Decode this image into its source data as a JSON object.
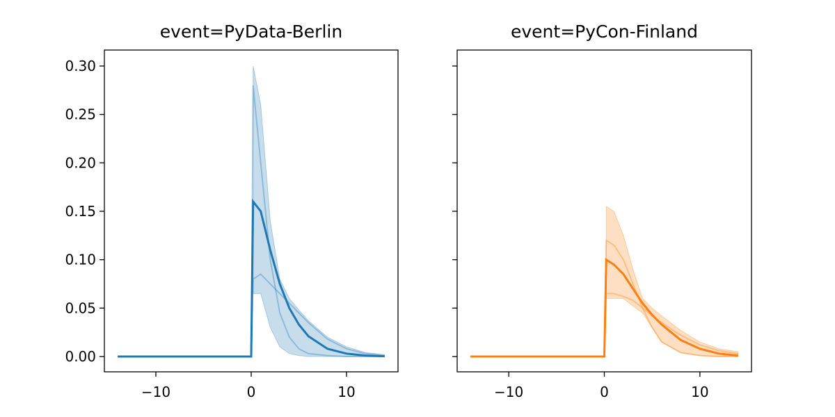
{
  "chart_data": [
    {
      "type": "line",
      "title": "event=PyData-Berlin",
      "x": [
        -14,
        -7,
        0,
        0.2,
        1,
        2,
        3,
        4,
        5,
        6,
        8,
        10,
        12,
        14
      ],
      "series": [
        {
          "color": "#1f77b4",
          "values": [
            0,
            0,
            0,
            0.16,
            0.15,
            0.11,
            0.075,
            0.05,
            0.033,
            0.021,
            0.008,
            0.003,
            0.001,
            0.0003
          ]
        }
      ],
      "band": {
        "color": "#1f77b4",
        "lower": [
          null,
          null,
          null,
          0.065,
          0.065,
          0.03,
          0.01,
          0.003,
          0.001,
          0,
          0,
          0,
          0,
          0
        ],
        "upper": [
          null,
          null,
          null,
          0.3,
          0.26,
          0.14,
          0.08,
          0.06,
          0.048,
          0.037,
          0.02,
          0.01,
          0.004,
          0.002
        ]
      },
      "samples": [
        [
          0,
          0,
          0,
          0.28,
          0.2,
          0.1,
          0.045,
          0.02,
          0.008,
          0.003,
          0.001,
          0,
          0,
          0
        ],
        [
          0,
          0,
          0,
          0.08,
          0.085,
          0.075,
          0.065,
          0.055,
          0.045,
          0.035,
          0.018,
          0.008,
          0.003,
          0.001
        ]
      ],
      "xlim": [
        -15.4,
        15.4
      ],
      "ylim": [
        -0.0158,
        0.3165
      ],
      "xticks": [
        {
          "value": -10,
          "label": "−10"
        },
        0,
        10
      ],
      "yticks": [
        {
          "value": 0,
          "label": "0.00"
        },
        0.05,
        {
          "value": 0.1,
          "label": "0.10"
        },
        0.15,
        {
          "value": 0.2,
          "label": "0.20"
        },
        0.25,
        {
          "value": 0.3,
          "label": "0.30"
        }
      ],
      "show_ytick_labels": true
    },
    {
      "type": "line",
      "title": "event=PyCon-Finland",
      "x": [
        -14,
        -7,
        0,
        0.2,
        1,
        2,
        3,
        4,
        5,
        6,
        8,
        10,
        12,
        14
      ],
      "series": [
        {
          "color": "#ff7f0e",
          "values": [
            0,
            0,
            0,
            0.1,
            0.095,
            0.085,
            0.07,
            0.055,
            0.043,
            0.033,
            0.017,
            0.008,
            0.003,
            0.001
          ]
        }
      ],
      "band": {
        "color": "#ff7f0e",
        "lower": [
          null,
          null,
          null,
          0.06,
          0.06,
          0.06,
          0.052,
          0.045,
          0.03,
          0.015,
          0.004,
          0.001,
          0,
          0
        ],
        "upper": [
          null,
          null,
          null,
          0.155,
          0.15,
          0.125,
          0.09,
          0.06,
          0.05,
          0.042,
          0.027,
          0.015,
          0.008,
          0.005
        ]
      },
      "samples": [
        [
          0,
          0,
          0,
          0.12,
          0.115,
          0.1,
          0.075,
          0.05,
          0.03,
          0.015,
          0.004,
          0.001,
          0,
          0
        ],
        [
          0,
          0,
          0,
          0.065,
          0.065,
          0.062,
          0.058,
          0.05,
          0.042,
          0.035,
          0.022,
          0.012,
          0.006,
          0.003
        ]
      ],
      "xlim": [
        -15.4,
        15.4
      ],
      "ylim": [
        -0.0158,
        0.3165
      ],
      "xticks": [
        {
          "value": -10,
          "label": "−10"
        },
        0,
        10
      ],
      "yticks": [
        0,
        0.05,
        0.1,
        0.15,
        0.2,
        0.25,
        0.3
      ],
      "show_ytick_labels": false
    }
  ]
}
